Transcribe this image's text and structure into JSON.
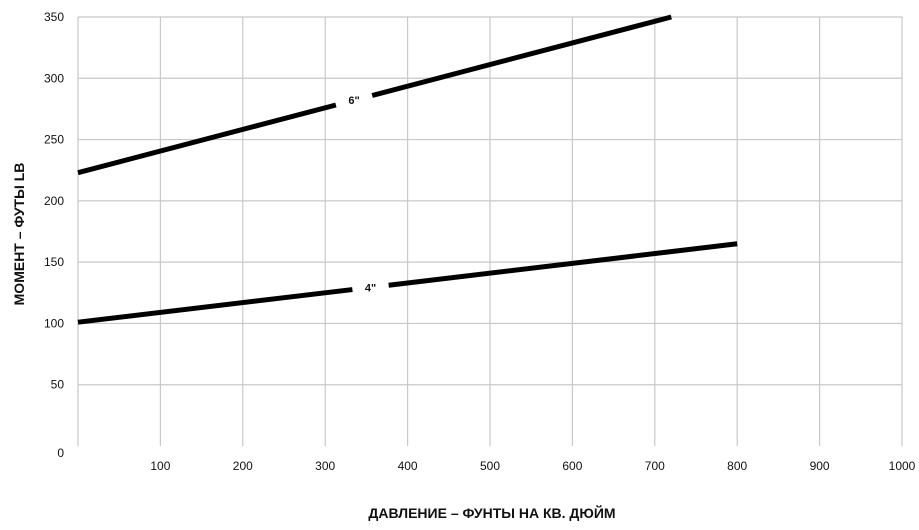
{
  "chart_data": {
    "type": "line",
    "title": "",
    "xlabel": "ДАВЛЕНИЕ – ФУНТЫ НА КВ. ДЮЙМ",
    "ylabel": "МОМЕНТ – ФУТЫ LB",
    "xlim": [
      0,
      1000
    ],
    "ylim": [
      0,
      350
    ],
    "x_ticks": [
      100,
      200,
      300,
      400,
      500,
      600,
      700,
      800,
      900,
      1000
    ],
    "y_ticks": [
      0,
      50,
      100,
      150,
      200,
      250,
      300,
      350
    ],
    "x_tick_labels": [
      "100",
      "200",
      "300",
      "400",
      "500",
      "600",
      "700",
      "800",
      "900",
      "1000"
    ],
    "y_tick_labels": [
      "0",
      "50",
      "100",
      "150",
      "200",
      "250",
      "300",
      "350"
    ],
    "grid": true,
    "legend": "none",
    "series": [
      {
        "name": "6\"",
        "color": "#000000",
        "points": [
          [
            0,
            223
          ],
          [
            720,
            350
          ]
        ],
        "label_at": 335
      },
      {
        "name": "4\"",
        "color": "#000000",
        "points": [
          [
            0,
            101
          ],
          [
            800,
            165
          ]
        ],
        "label_at": 355
      }
    ]
  }
}
